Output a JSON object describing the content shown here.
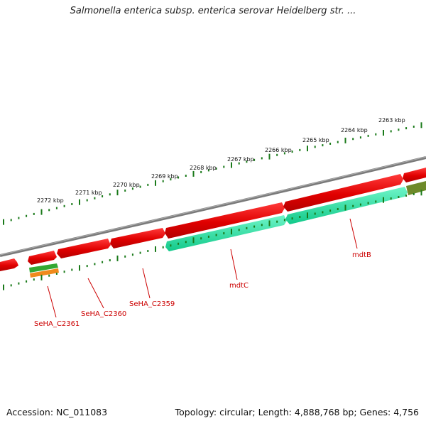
{
  "title": "Salmonella enterica subsp. enterica serovar Heidelberg str. ...",
  "accession_text": "Accession: NC_011083",
  "summary_text": "Topology: circular; Length: 4,888,768 bp; Genes: 4,756",
  "colors": {
    "backbone": "#808080",
    "forward_feature": "#e60000",
    "reverse_feature": "#e60000",
    "cds_teal": "#19e6a0",
    "green_feature": "#33a833",
    "orange_feature": "#f08a1c",
    "olive_feature": "#6e8a2a",
    "ticks": "#1a7a1a",
    "label_red": "#cc0000"
  },
  "scale_ticks": [
    "2272 kbp",
    "2271 kbp",
    "2270 kbp",
    "2269 kbp",
    "2268 kbp",
    "2267 kbp",
    "2266 kbp",
    "2265 kbp",
    "2264 kbp",
    "2263 kbp"
  ],
  "gene_labels": [
    "SeHA_C2361",
    "SeHA_C2360",
    "SeHA_C2359",
    "mdtC",
    "mdtB"
  ]
}
